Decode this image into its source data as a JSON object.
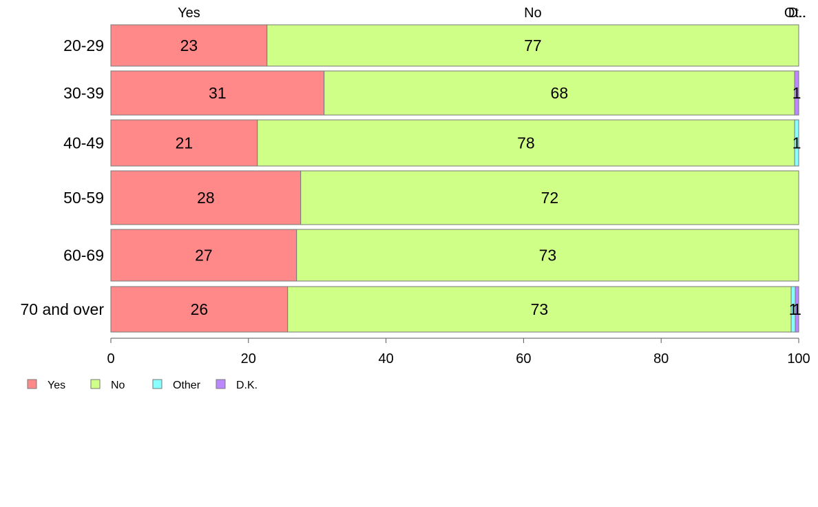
{
  "chart_data": {
    "type": "bar",
    "orientation": "horizontal",
    "stacked": true,
    "title": "",
    "xlabel": "",
    "ylabel": "",
    "xlim": [
      0,
      100
    ],
    "x_ticks": [
      0,
      20,
      40,
      60,
      80,
      100
    ],
    "grid": false,
    "legend_position": "bottom-left",
    "categories": [
      "20-29",
      "30-39",
      "40-49",
      "50-59",
      "60-69",
      "70 and over"
    ],
    "series": [
      {
        "name": "Yes",
        "color": "#FF8888",
        "values": [
          22.7,
          31.0,
          21.3,
          27.6,
          27.0,
          25.7
        ],
        "labels": [
          "23",
          "31",
          "21",
          "28",
          "27",
          "26"
        ]
      },
      {
        "name": "No",
        "color": "#D0FF88",
        "values": [
          77.3,
          68.4,
          78.1,
          72.4,
          73.0,
          73.2
        ],
        "labels": [
          "77",
          "68",
          "78",
          "72",
          "73",
          "73"
        ]
      },
      {
        "name": "Other",
        "color": "#88FFFF",
        "values": [
          0,
          0,
          0.6,
          0,
          0,
          0.6
        ],
        "labels": [
          "",
          "",
          "1",
          "",
          "",
          "1"
        ]
      },
      {
        "name": "D.K.",
        "color": "#BB88FF",
        "values": [
          0,
          0.6,
          0,
          0,
          0,
          0.5
        ],
        "labels": [
          "",
          "1",
          "",
          "",
          "",
          "1"
        ]
      }
    ],
    "top_labels": [
      {
        "text": "Yes",
        "x": 11.35
      },
      {
        "text": "No",
        "x": 61.35
      },
      {
        "text": "Ot..",
        "x": 99.5
      },
      {
        "text": "D..",
        "x": 99.75
      }
    ]
  }
}
